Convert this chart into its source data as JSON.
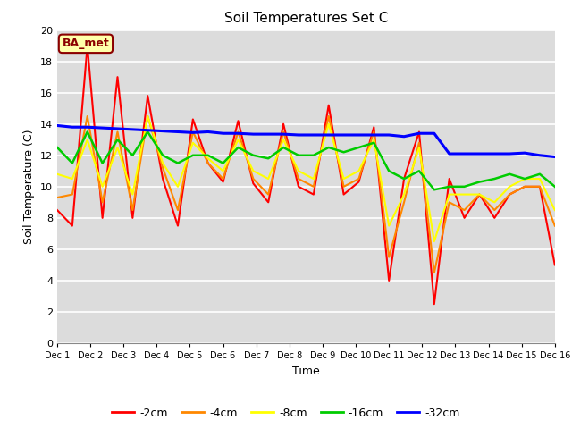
{
  "title": "Soil Temperatures Set C",
  "xlabel": "Time",
  "ylabel": "Soil Temperature (C)",
  "ylim": [
    0,
    20
  ],
  "yticks": [
    0,
    2,
    4,
    6,
    8,
    10,
    12,
    14,
    16,
    18,
    20
  ],
  "annotation": "BA_met",
  "plot_bg_color": "#dcdcdc",
  "fig_bg_color": "#ffffff",
  "legend_labels": [
    "-2cm",
    "-4cm",
    "-8cm",
    "-16cm",
    "-32cm"
  ],
  "legend_colors": [
    "#ff0000",
    "#ff8800",
    "#ffff00",
    "#00cc00",
    "#0000ff"
  ],
  "series_colors": [
    "#ff0000",
    "#ff8800",
    "#ffff00",
    "#00cc00",
    "#0000ff"
  ],
  "x_tick_labels": [
    "Dec 1",
    "Dec 2",
    "Dec 3",
    "Dec 4",
    "Dec 5",
    "Dec 6",
    "Dec 7",
    "Dec 8",
    "Dec 9",
    "Dec 10",
    "Dec 11",
    "Dec 12",
    "Dec 13",
    "Dec 14",
    "Dec 15",
    "Dec 16"
  ],
  "series": {
    "neg2cm": [
      8.5,
      7.5,
      19.0,
      8.0,
      17.0,
      8.0,
      15.8,
      10.5,
      7.5,
      14.3,
      11.5,
      10.3,
      14.2,
      10.2,
      9.0,
      14.0,
      10.0,
      9.5,
      15.2,
      9.5,
      10.3,
      13.8,
      4.0,
      10.5,
      13.5,
      2.5,
      10.5,
      8.0,
      9.5,
      8.0,
      9.5,
      10.0,
      10.0,
      5.0
    ],
    "neg4cm": [
      9.3,
      9.5,
      14.5,
      9.0,
      13.5,
      8.5,
      14.5,
      11.2,
      8.5,
      13.5,
      11.5,
      10.5,
      13.5,
      10.5,
      9.5,
      13.5,
      10.5,
      10.0,
      14.5,
      10.0,
      10.5,
      13.5,
      5.5,
      9.0,
      12.8,
      4.5,
      9.0,
      8.5,
      9.5,
      8.5,
      9.5,
      10.0,
      10.0,
      7.5
    ],
    "neg8cm": [
      10.8,
      10.5,
      13.0,
      10.0,
      12.5,
      9.5,
      14.5,
      11.5,
      10.0,
      12.8,
      11.8,
      11.0,
      13.0,
      11.0,
      10.5,
      13.0,
      11.0,
      10.5,
      14.0,
      10.5,
      11.0,
      13.0,
      7.5,
      9.5,
      12.5,
      6.5,
      9.5,
      9.5,
      9.5,
      9.0,
      10.0,
      10.5,
      10.5,
      8.5
    ],
    "neg16cm": [
      12.5,
      11.5,
      13.5,
      11.5,
      13.0,
      12.0,
      13.5,
      12.0,
      11.5,
      12.0,
      12.0,
      11.5,
      12.5,
      12.0,
      11.8,
      12.5,
      12.0,
      12.0,
      12.5,
      12.2,
      12.5,
      12.8,
      11.0,
      10.5,
      11.0,
      9.8,
      10.0,
      10.0,
      10.3,
      10.5,
      10.8,
      10.5,
      10.8,
      10.0
    ],
    "neg32cm": [
      13.9,
      13.8,
      13.8,
      13.75,
      13.7,
      13.65,
      13.6,
      13.55,
      13.5,
      13.45,
      13.5,
      13.4,
      13.4,
      13.35,
      13.35,
      13.35,
      13.3,
      13.3,
      13.3,
      13.3,
      13.3,
      13.3,
      13.3,
      13.2,
      13.4,
      13.4,
      12.1,
      12.1,
      12.1,
      12.1,
      12.1,
      12.15,
      12.0,
      11.9
    ]
  }
}
